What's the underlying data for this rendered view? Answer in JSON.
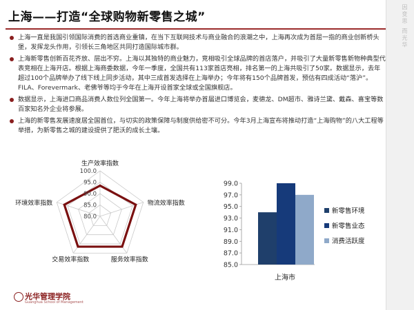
{
  "slide": {
    "title": "上海——打造“全球购物新零售之城”",
    "sidebar_text": "因变思 而光华",
    "bullets": [
      "上海一直是我国引领国际消费的首选商业重镇，在当下互联网技术与商业融合的浪潮之中，上海再次成为首屈一指的商业创新桥头堡，发挥龙头作用，引领长三角地区共同打造国际城市群。",
      "上海新零售创新百花齐放、层出不穷。上海以其独特的商业魅力，竞相吸引全球品牌的首店落户，并吸引了大量新零售新物种典型代表竞相在上海开店。根据上海商委数据，今年一季度，全国共有113家首店亮相，排名第一的上海共吸引了50家。数据显示，去年超过100个品牌举办了线下线上同步活动，其中三成首发选择在上海举办；今年将有150个品牌首发，预估有四成活动“落沪”。FILA、Forevermark、老佛爷等均于今年在上海开设首家全球或全国旗舰店。",
      "数据显示，上海进口商品消费人数位列全国第一。今年上海将举办首届进口博览会，麦德龙、DM超市、雅诗兰黛、戴森、喜宝等数百家知名外企业将参展。",
      "上海的新零售发展速度居全国首位，与切实的政策保障与制度供给密不可分。今年3月上海宣布将推动打造“上海购物”的八大工程等举措，为新零售之城的建设提供了肥沃的成长土壤。"
    ],
    "footer_logo": "光华管理学院",
    "footer_sub": "Guanghua School of Management"
  },
  "colors": {
    "accent": "#8a1f1f",
    "radar_line": "#7a1010",
    "grid": "#c9c9c9",
    "bar1": "#1f3f6b",
    "bar2": "#163a7a",
    "bar3": "#8fa9c9"
  },
  "chart_data": [
    {
      "type": "radar",
      "axes": [
        "生产效率指数",
        "物流效率指数",
        "服务效率指数",
        "交易效率指数",
        "环境效率指数"
      ],
      "ticks": [
        "100.0",
        "95.0",
        "90.0",
        "85.0",
        "80.0"
      ],
      "rmin": 80,
      "rmax": 100,
      "values": [
        93.5,
        96.5,
        96.5,
        96.5,
        96.5
      ]
    },
    {
      "type": "bar",
      "categories": [
        "上海市"
      ],
      "series": [
        {
          "name": "新零售环境",
          "values": [
            94.0
          ]
        },
        {
          "name": "新零售业态",
          "values": [
            99.0
          ]
        },
        {
          "name": "消费活跃度",
          "values": [
            97.0
          ]
        }
      ],
      "yticks": [
        "99.0",
        "97.0",
        "95.0",
        "93.0",
        "91.0",
        "89.0",
        "87.0",
        "85.0"
      ],
      "ylim": [
        85,
        99
      ]
    }
  ]
}
